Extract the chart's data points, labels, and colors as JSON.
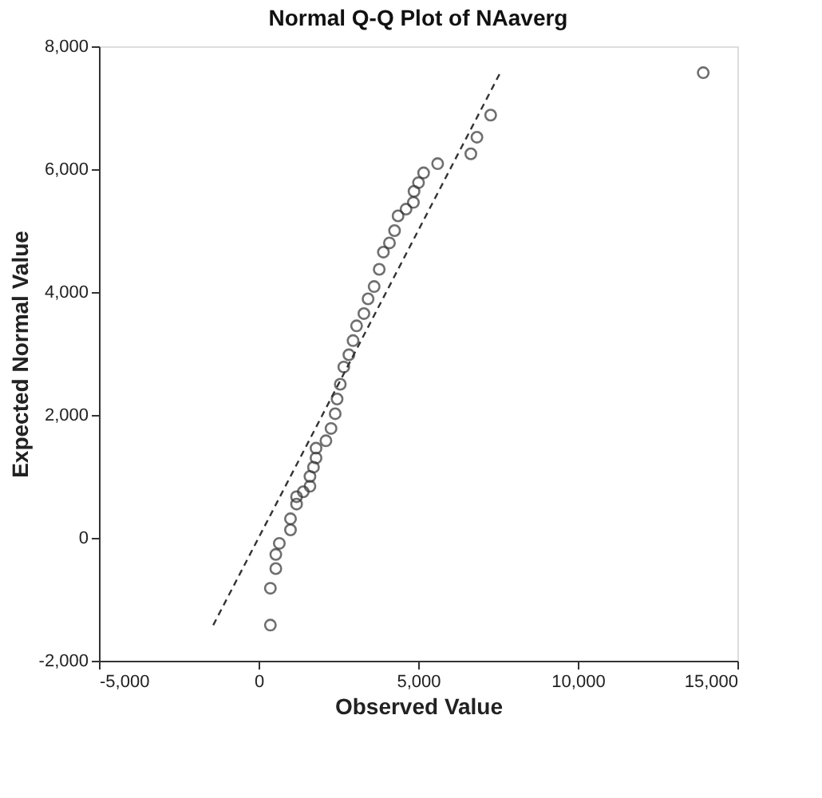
{
  "chart_data": {
    "type": "scatter",
    "title": "Normal Q-Q Plot of NAaverg",
    "xlabel": "Observed Value",
    "ylabel": "Expected Normal Value",
    "xlim": [
      -5000,
      15000
    ],
    "ylim": [
      -2000,
      8000
    ],
    "xticks": [
      {
        "value": -5000,
        "label": "-5,000"
      },
      0,
      {
        "value": 5000,
        "label": "5,000"
      },
      {
        "value": 10000,
        "label": "10,000"
      },
      {
        "value": 15000,
        "label": "15,000"
      }
    ],
    "yticks": [
      {
        "value": -2000,
        "label": "-2,000"
      },
      0,
      {
        "value": 2000,
        "label": "2,000"
      },
      {
        "value": 4000,
        "label": "4,000"
      },
      {
        "value": 6000,
        "label": "6,000"
      },
      {
        "value": 8000,
        "label": "8,000"
      }
    ],
    "grid": false,
    "series": [
      {
        "marker": "circle",
        "color": "#333333",
        "x": [
          370,
          370,
          540,
          540,
          650,
          1000,
          1000,
          1190,
          1190,
          1400,
          1610,
          1610,
          1720,
          1800,
          1800,
          2110,
          2270,
          2400,
          2460,
          2560,
          2670,
          2830,
          2960,
          3070,
          3300,
          3430,
          3620,
          3780,
          3910,
          4100,
          4260,
          4370,
          4620,
          4850,
          4870,
          5010,
          5170,
          5610,
          6650,
          6840,
          7270,
          13930
        ],
        "values": [
          -1420,
          -820,
          -500,
          -270,
          -90,
          130,
          310,
          550,
          670,
          750,
          840,
          1000,
          1150,
          1300,
          1460,
          1580,
          1780,
          2020,
          2260,
          2500,
          2780,
          2980,
          3210,
          3450,
          3650,
          3890,
          4090,
          4370,
          4650,
          4800,
          5000,
          5240,
          5350,
          5460,
          5640,
          5780,
          5940,
          6090,
          6250,
          6520,
          6880,
          7570
        ]
      },
      {
        "type": "line",
        "line_style": "dashed",
        "marker": "none",
        "color": "#333333",
        "x": [
          -1420,
          7570
        ],
        "values": [
          -1420,
          7570
        ]
      }
    ]
  }
}
